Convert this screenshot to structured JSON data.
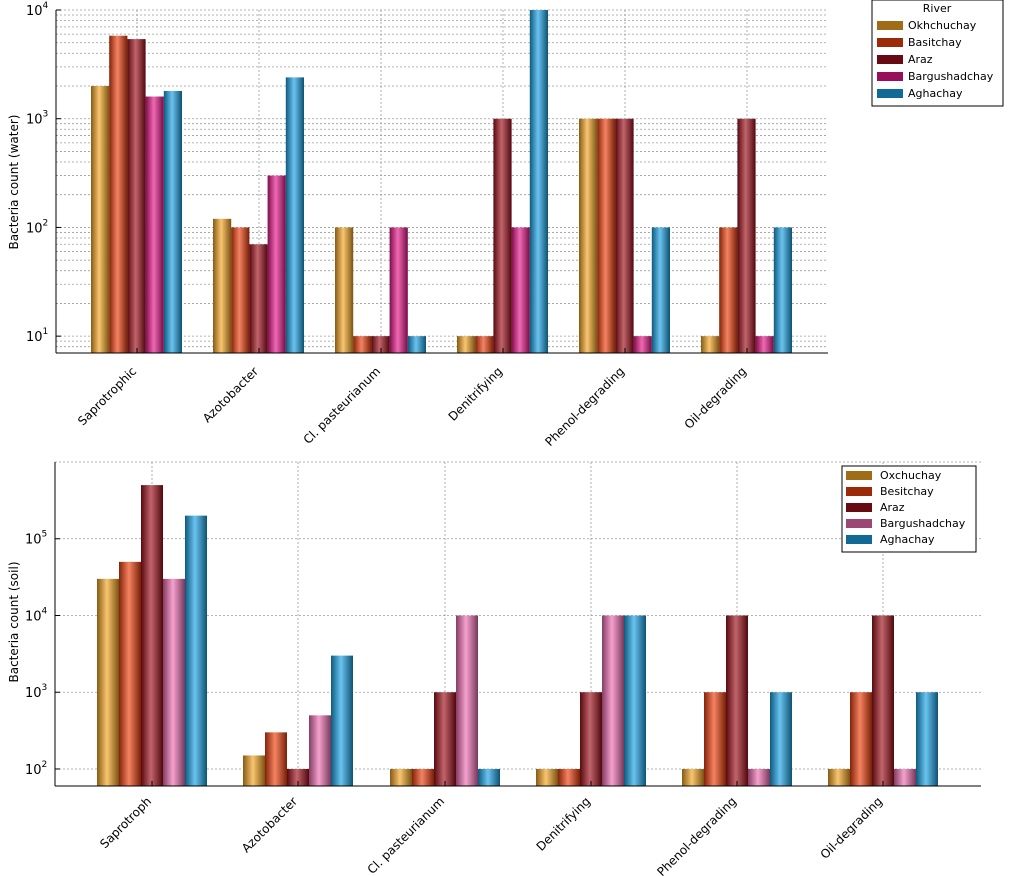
{
  "chart_data": [
    {
      "type": "bar",
      "scale": "log",
      "ylabel": "Bacteria count (water)",
      "ylim": [
        7,
        10000
      ],
      "yticks": [
        {
          "v": 10,
          "label": "10",
          "exp": "1"
        },
        {
          "v": 100,
          "label": "10",
          "exp": "2"
        },
        {
          "v": 1000,
          "label": "10",
          "exp": "3"
        },
        {
          "v": 10000,
          "label": "10",
          "exp": "4"
        }
      ],
      "categories": [
        "Saprotrophic",
        "Azotobacter",
        "Cl. pasteurianum",
        "Denitrifying",
        "Phenol-degrading",
        "Oil-degrading"
      ],
      "legend_title": "River",
      "series": [
        {
          "name": "Okhchuchay",
          "color": "#f5a623",
          "values": [
            2000,
            120,
            100,
            10,
            1000,
            10
          ]
        },
        {
          "name": "Basitchay",
          "color": "#f0400e",
          "values": [
            5800,
            100,
            10,
            10,
            1000,
            100
          ]
        },
        {
          "name": "Araz",
          "color": "#a0101c",
          "values": [
            5400,
            70,
            10,
            1000,
            1000,
            1000
          ]
        },
        {
          "name": "Bargushadchay",
          "color": "#e8178a",
          "values": [
            1600,
            300,
            100,
            100,
            10,
            10
          ]
        },
        {
          "name": "Aghachay",
          "color": "#1aa3e6",
          "values": [
            1800,
            2400,
            10,
            10000,
            100,
            100
          ]
        }
      ]
    },
    {
      "type": "bar",
      "scale": "log",
      "ylabel": "Bacteria count (soil)",
      "ylim": [
        60,
        1000000
      ],
      "yticks": [
        {
          "v": 100,
          "label": "10",
          "exp": "2"
        },
        {
          "v": 1000,
          "label": "10",
          "exp": "3"
        },
        {
          "v": 10000,
          "label": "10",
          "exp": "4"
        },
        {
          "v": 100000,
          "label": "10",
          "exp": "5"
        }
      ],
      "categories": [
        "Saprotroph",
        "Azotobacter",
        "Cl. pasteurianum",
        "Denitrifying",
        "Phenol-degrading",
        "Oil-degrading"
      ],
      "legend_title": "",
      "series": [
        {
          "name": "Oxchuchay",
          "color": "#f5a623",
          "values": [
            30000,
            150,
            100,
            100,
            100,
            100
          ]
        },
        {
          "name": "Besitchay",
          "color": "#f0400e",
          "values": [
            50000,
            300,
            100,
            100,
            1000,
            1000
          ]
        },
        {
          "name": "Araz",
          "color": "#a0101c",
          "values": [
            500000,
            100,
            1000,
            1000,
            10000,
            10000
          ]
        },
        {
          "name": "Bargushadchay",
          "color": "#f06fb4",
          "values": [
            30000,
            500,
            10000,
            10000,
            100,
            100
          ]
        },
        {
          "name": "Aghachay",
          "color": "#1aa3e6",
          "values": [
            200000,
            3000,
            100,
            10000,
            1000,
            1000
          ]
        }
      ]
    }
  ]
}
